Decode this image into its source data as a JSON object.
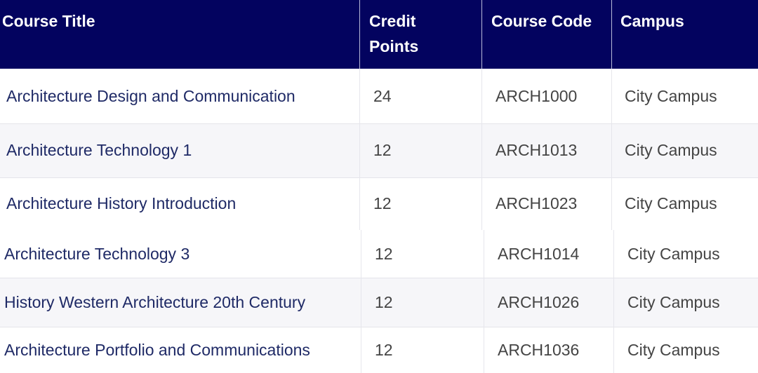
{
  "table": {
    "headers": {
      "title": "Course Title",
      "credit_line1": "Credit",
      "credit_line2": "Points",
      "code": "Course Code",
      "campus": "Campus"
    },
    "rows": [
      {
        "title": "Architecture Design and Communication",
        "credits": "24",
        "code": "ARCH1000",
        "campus": "City Campus"
      },
      {
        "title": "Architecture Technology 1",
        "credits": "12",
        "code": "ARCH1013",
        "campus": "City Campus"
      },
      {
        "title": "Architecture History Introduction",
        "credits": "12",
        "code": "ARCH1023",
        "campus": "City Campus"
      },
      {
        "title": "Architecture Technology 3",
        "credits": "12",
        "code": "ARCH1014",
        "campus": "City Campus"
      },
      {
        "title": "History Western Architecture 20th Century",
        "credits": "12",
        "code": "ARCH1026",
        "campus": "City Campus"
      },
      {
        "title": "Architecture Portfolio and Communications",
        "credits": "12",
        "code": "ARCH1036",
        "campus": "City Campus"
      }
    ]
  }
}
